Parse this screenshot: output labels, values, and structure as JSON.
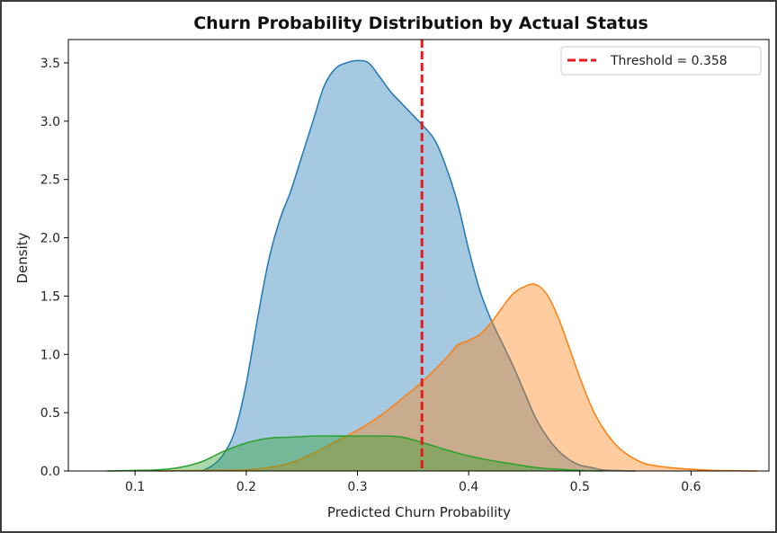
{
  "chart_data": {
    "type": "area",
    "title": "Churn Probability Distribution by Actual Status",
    "xlabel": "Predicted Churn Probability",
    "ylabel": "Density",
    "xlim": [
      0.04,
      0.67
    ],
    "ylim": [
      0,
      3.7
    ],
    "xticks": [
      0.1,
      0.2,
      0.3,
      0.4,
      0.5,
      0.6
    ],
    "yticks": [
      0.0,
      0.5,
      1.0,
      1.5,
      2.0,
      2.5,
      3.0,
      3.5
    ],
    "grid": false,
    "legend_position": "top-right",
    "series": [
      {
        "color": "#1f77b4",
        "x": [
          0.16,
          0.17,
          0.18,
          0.19,
          0.2,
          0.21,
          0.22,
          0.23,
          0.24,
          0.25,
          0.26,
          0.27,
          0.28,
          0.29,
          0.3,
          0.31,
          0.32,
          0.33,
          0.34,
          0.35,
          0.36,
          0.37,
          0.38,
          0.39,
          0.4,
          0.41,
          0.42,
          0.43,
          0.44,
          0.45,
          0.46,
          0.47,
          0.48,
          0.49,
          0.5,
          0.51,
          0.52,
          0.53,
          0.54,
          0.55
        ],
        "y": [
          0.0,
          0.05,
          0.15,
          0.35,
          0.75,
          1.3,
          1.8,
          2.15,
          2.4,
          2.7,
          3.0,
          3.3,
          3.45,
          3.5,
          3.52,
          3.5,
          3.38,
          3.25,
          3.15,
          3.05,
          2.95,
          2.83,
          2.6,
          2.3,
          1.9,
          1.55,
          1.3,
          1.1,
          0.9,
          0.68,
          0.46,
          0.3,
          0.18,
          0.1,
          0.05,
          0.03,
          0.01,
          0.005,
          0.001,
          0.0
        ]
      },
      {
        "color": "#ff7f0e",
        "x": [
          0.12,
          0.16,
          0.2,
          0.22,
          0.24,
          0.26,
          0.28,
          0.3,
          0.32,
          0.34,
          0.36,
          0.38,
          0.39,
          0.4,
          0.41,
          0.42,
          0.43,
          0.44,
          0.45,
          0.46,
          0.47,
          0.48,
          0.49,
          0.5,
          0.51,
          0.52,
          0.53,
          0.54,
          0.55,
          0.56,
          0.58,
          0.6,
          0.62,
          0.64,
          0.66
        ],
        "y": [
          0.0,
          0.005,
          0.01,
          0.03,
          0.07,
          0.15,
          0.25,
          0.35,
          0.47,
          0.62,
          0.78,
          0.97,
          1.08,
          1.12,
          1.17,
          1.27,
          1.4,
          1.52,
          1.58,
          1.6,
          1.52,
          1.33,
          1.07,
          0.8,
          0.56,
          0.38,
          0.25,
          0.16,
          0.1,
          0.06,
          0.03,
          0.015,
          0.005,
          0.002,
          0.0
        ]
      },
      {
        "color": "#2ca02c",
        "x": [
          0.075,
          0.1,
          0.12,
          0.14,
          0.16,
          0.18,
          0.2,
          0.22,
          0.24,
          0.26,
          0.28,
          0.3,
          0.32,
          0.34,
          0.36,
          0.38,
          0.4,
          0.42,
          0.44,
          0.46,
          0.48,
          0.5,
          0.52
        ],
        "y": [
          0.0,
          0.005,
          0.01,
          0.03,
          0.08,
          0.17,
          0.24,
          0.28,
          0.29,
          0.3,
          0.3,
          0.3,
          0.3,
          0.29,
          0.24,
          0.18,
          0.13,
          0.09,
          0.06,
          0.03,
          0.015,
          0.005,
          0.0
        ]
      }
    ],
    "threshold": {
      "value": 0.358,
      "label": "Threshold = 0.358",
      "color": "#e41a1c",
      "style": "dashed"
    }
  }
}
